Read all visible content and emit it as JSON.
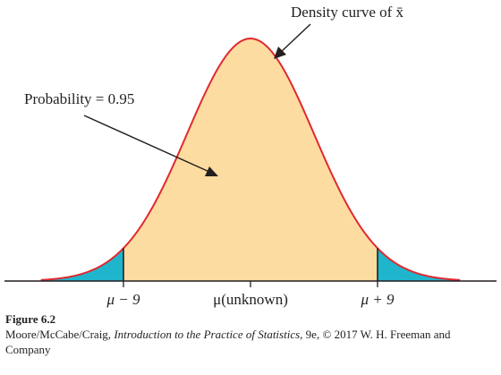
{
  "chart_data": {
    "type": "area",
    "distribution": "normal",
    "annotations": {
      "curve_label": "Density curve of x̄",
      "area_label": "Probability = 0.95"
    },
    "tick_labels": [
      "μ − 9",
      "μ(unknown)",
      "μ + 9"
    ],
    "ticks_in_sigma": [
      -2,
      0,
      2
    ],
    "x_range_in_sigma": [
      -3.3,
      3.3
    ],
    "central_probability": 0.95,
    "colors": {
      "center_fill": "#fcdca0",
      "tail_fill": "#1fb6cd",
      "curve": "#e2282f",
      "axis": "#231f20"
    }
  },
  "caption": {
    "title": "Figure 6.2",
    "authors": "Moore/McCabe/Craig, ",
    "book": "Introduction to the Practice of Statistics",
    "edition": ", 9e, © 2017 W. H. Freeman and Company"
  }
}
